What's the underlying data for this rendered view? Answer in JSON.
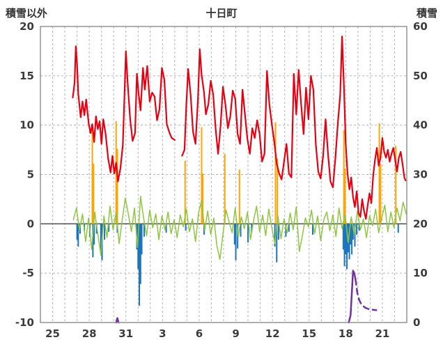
{
  "chart_data": {
    "type": "line",
    "title": "十日町",
    "left_axis": {
      "label": "積雪以外",
      "min": -10,
      "max": 20,
      "ticks": [
        20,
        15,
        10,
        5,
        0,
        -5,
        -10
      ]
    },
    "right_axis": {
      "label": "積雪",
      "min": 0,
      "max": 60,
      "ticks": [
        60,
        50,
        40,
        30,
        20,
        10,
        0
      ]
    },
    "x_axis": {
      "min": 0,
      "max": 30,
      "gridline_interval": 1,
      "tick_positions": [
        1,
        4,
        7,
        10,
        13,
        16,
        19,
        22,
        25,
        28
      ],
      "tick_labels": [
        "25",
        "28",
        "31",
        "3",
        "6",
        "9",
        "12",
        "15",
        "18",
        "21"
      ]
    },
    "colors": {
      "temperature": "#e60012",
      "green_series": "#8dc63f",
      "blue_bars": "#1c75bc",
      "orange_bars": "#ffa400",
      "snow_depth": "#7030a0",
      "grid": "#b3b3b3",
      "border": "#8c8c8c",
      "zero_line": "#595959"
    },
    "series": [
      {
        "name": "snowfall-bars",
        "axis": "left",
        "type": "bar",
        "color": "#ffa400",
        "width": 2,
        "points": [
          [
            4.25,
            9.9
          ],
          [
            4.35,
            6.1
          ],
          [
            6.2,
            10.4
          ],
          [
            6.3,
            7.6
          ],
          [
            11.85,
            6.4
          ],
          [
            13.2,
            9.8
          ],
          [
            13.3,
            5.1
          ],
          [
            15.1,
            7.1
          ],
          [
            16.3,
            5.5
          ],
          [
            19.25,
            10.3
          ],
          [
            19.4,
            6.6
          ],
          [
            24.85,
            9.5
          ],
          [
            24.95,
            5.6
          ],
          [
            27.75,
            10.2
          ],
          [
            27.85,
            6.1
          ],
          [
            29.1,
            7.9
          ]
        ]
      },
      {
        "name": "precipitation-bars",
        "axis": "left",
        "type": "bar",
        "color": "#1c75bc",
        "width": 2,
        "points": [
          [
            3.0,
            -1.6
          ],
          [
            3.1,
            -2.3
          ],
          [
            3.25,
            -1.0
          ],
          [
            3.6,
            -0.7
          ],
          [
            4.05,
            -1.3
          ],
          [
            4.3,
            -3.4
          ],
          [
            4.4,
            -2.1
          ],
          [
            4.6,
            -1.0
          ],
          [
            4.95,
            -2.9
          ],
          [
            5.05,
            -3.7
          ],
          [
            5.25,
            -1.6
          ],
          [
            5.6,
            -0.8
          ],
          [
            6.3,
            -0.9
          ],
          [
            7.9,
            -2.6
          ],
          [
            8.0,
            -4.6
          ],
          [
            8.1,
            -8.3
          ],
          [
            8.2,
            -6.1
          ],
          [
            8.3,
            -3.1
          ],
          [
            8.5,
            -1.3
          ],
          [
            10.3,
            -0.9
          ],
          [
            11.9,
            -0.7
          ],
          [
            13.4,
            -1.1
          ],
          [
            15.9,
            -2.1
          ],
          [
            16.0,
            -3.7
          ],
          [
            16.15,
            -2.5
          ],
          [
            16.4,
            -1.3
          ],
          [
            17.0,
            -1.9
          ],
          [
            17.3,
            -0.9
          ],
          [
            19.2,
            -2.3
          ],
          [
            19.35,
            -3.9
          ],
          [
            19.5,
            -1.6
          ],
          [
            20.1,
            -1.3
          ],
          [
            20.35,
            -0.8
          ],
          [
            22.3,
            -1.1
          ],
          [
            24.8,
            -2.6
          ],
          [
            24.9,
            -4.3
          ],
          [
            25.0,
            -3.1
          ],
          [
            25.1,
            -4.6
          ],
          [
            25.2,
            -2.9
          ],
          [
            25.3,
            -3.6
          ],
          [
            25.4,
            -2.1
          ],
          [
            25.5,
            -3.1
          ],
          [
            25.6,
            -1.6
          ],
          [
            25.75,
            -2.3
          ],
          [
            25.9,
            -1.1
          ],
          [
            26.1,
            -0.7
          ],
          [
            29.3,
            -0.9
          ]
        ]
      },
      {
        "name": "green-series",
        "axis": "left",
        "type": "line",
        "color": "#8dc63f",
        "width": 1.5,
        "sampled": {
          "start": 2.7,
          "step": 0.25,
          "values": [
            0.4,
            1.6,
            -0.6,
            1.0,
            -1.8,
            0.6,
            -2.6,
            1.2,
            -1.0,
            -3.2,
            0.8,
            -1.4,
            1.8,
            -0.6,
            1.2,
            -2.0,
            0.4,
            2.6,
            1.0,
            -0.8,
            1.6,
            -2.4,
            2.8,
            0.6,
            -1.2,
            1.4,
            -0.4,
            1.0,
            -1.6,
            0.8,
            -0.6,
            1.2,
            -1.0,
            0.4,
            -1.4,
            0.9,
            -0.3,
            1.5,
            -0.8,
            0.5,
            -1.8,
            1.1,
            2.4,
            -0.7,
            1.3,
            -1.1,
            0.6,
            -2.2,
            -3.6,
            -1.0,
            1.4,
            0.2,
            -0.9,
            1.6,
            -1.3,
            0.7,
            -0.5,
            1.2,
            -1.6,
            0.3,
            1.8,
            -0.8,
            0.9,
            -1.2,
            1.5,
            -0.4,
            -2.0,
            0.8,
            -1.5,
            0.5,
            -0.9,
            1.1,
            -0.6,
            1.7,
            -2.8,
            -1.2,
            0.6,
            -0.3,
            1.4,
            -1.0,
            0.8,
            -1.7,
            0.4,
            1.2,
            -0.7,
            0.9,
            -1.3,
            1.6,
            -0.5,
            1.0,
            -1.9,
            0.7,
            -1.1,
            1.3,
            -0.6,
            0.5,
            -1.4,
            0.8,
            -0.2,
            1.5,
            -0.9,
            0.6,
            1.9,
            -0.8,
            1.2,
            -0.4,
            1.6,
            0.3,
            2.2,
            1.0
          ]
        }
      },
      {
        "name": "temperature",
        "axis": "left",
        "type": "line",
        "color": "#e60012",
        "width": 2.2,
        "segments": [
          [
            [
              2.65,
              12.8
            ],
            [
              2.8,
              14.3
            ],
            [
              2.9,
              18.0
            ],
            [
              3.0,
              16.2
            ],
            [
              3.1,
              13.2
            ],
            [
              3.3,
              10.8
            ],
            [
              3.45,
              12.4
            ],
            [
              3.6,
              11.0
            ],
            [
              3.75,
              12.6
            ],
            [
              3.95,
              10.2
            ],
            [
              4.1,
              9.2
            ],
            [
              4.25,
              10.1
            ],
            [
              4.4,
              8.3
            ],
            [
              4.55,
              10.9
            ],
            [
              4.7,
              9.6
            ],
            [
              4.85,
              10.4
            ],
            [
              5.0,
              8.1
            ],
            [
              5.15,
              10.6
            ],
            [
              5.35,
              9.0
            ],
            [
              5.55,
              6.6
            ],
            [
              5.75,
              5.2
            ],
            [
              5.9,
              6.9
            ],
            [
              6.05,
              5.1
            ],
            [
              6.2,
              6.2
            ],
            [
              6.35,
              4.3
            ],
            [
              6.55,
              5.6
            ],
            [
              6.75,
              8.0
            ],
            [
              6.9,
              13.6
            ],
            [
              7.0,
              17.5
            ],
            [
              7.15,
              14.2
            ],
            [
              7.35,
              10.6
            ],
            [
              7.55,
              8.4
            ],
            [
              7.75,
              9.2
            ],
            [
              7.9,
              15.2
            ],
            [
              8.05,
              13.1
            ],
            [
              8.2,
              11.5
            ],
            [
              8.4,
              15.8
            ],
            [
              8.55,
              13.6
            ],
            [
              8.75,
              16.0
            ],
            [
              8.95,
              12.4
            ],
            [
              9.15,
              13.3
            ],
            [
              9.35,
              12.9
            ],
            [
              9.55,
              10.5
            ],
            [
              9.75,
              11.6
            ],
            [
              9.95,
              15.8
            ],
            [
              10.15,
              14.6
            ],
            [
              10.35,
              10.1
            ],
            [
              10.55,
              9.3
            ],
            [
              10.75,
              8.7
            ],
            [
              11.0,
              8.5
            ]
          ],
          [
            [
              11.6,
              6.9
            ],
            [
              11.8,
              7.5
            ],
            [
              11.95,
              12.1
            ],
            [
              12.1,
              15.7
            ],
            [
              12.3,
              13.1
            ],
            [
              12.5,
              9.3
            ],
            [
              12.7,
              8.1
            ],
            [
              12.9,
              12.6
            ],
            [
              13.05,
              17.7
            ],
            [
              13.2,
              15.1
            ],
            [
              13.4,
              13.3
            ],
            [
              13.55,
              11.1
            ],
            [
              13.75,
              12.1
            ],
            [
              13.95,
              14.5
            ],
            [
              14.15,
              13.1
            ],
            [
              14.35,
              9.6
            ],
            [
              14.55,
              7.1
            ],
            [
              14.75,
              9.9
            ],
            [
              14.95,
              13.9
            ],
            [
              15.15,
              12.1
            ],
            [
              15.35,
              9.7
            ],
            [
              15.55,
              10.9
            ],
            [
              15.75,
              13.5
            ],
            [
              15.95,
              12.7
            ],
            [
              16.15,
              9.1
            ],
            [
              16.35,
              8.1
            ],
            [
              16.55,
              13.6
            ],
            [
              16.75,
              11.1
            ],
            [
              16.95,
              8.6
            ],
            [
              17.15,
              7.1
            ],
            [
              17.35,
              9.7
            ],
            [
              17.55,
              8.7
            ],
            [
              17.75,
              10.5
            ],
            [
              17.95,
              9.1
            ],
            [
              18.15,
              6.3
            ],
            [
              18.35,
              7.1
            ],
            [
              18.55,
              15.5
            ],
            [
              18.75,
              12.1
            ],
            [
              18.95,
              10.1
            ],
            [
              19.15,
              8.3
            ],
            [
              19.35,
              6.1
            ],
            [
              19.55,
              5.1
            ],
            [
              19.75,
              4.5
            ],
            [
              19.95,
              6.3
            ],
            [
              20.15,
              8.1
            ],
            [
              20.35,
              5.1
            ],
            [
              20.55,
              4.7
            ],
            [
              20.75,
              15.2
            ],
            [
              20.95,
              11.1
            ],
            [
              21.15,
              15.6
            ],
            [
              21.35,
              12.1
            ],
            [
              21.55,
              9.1
            ],
            [
              21.75,
              13.8
            ],
            [
              21.95,
              10.6
            ],
            [
              22.15,
              15.0
            ],
            [
              22.35,
              13.6
            ],
            [
              22.55,
              8.1
            ],
            [
              22.75,
              5.3
            ],
            [
              22.95,
              4.6
            ],
            [
              23.15,
              6.9
            ],
            [
              23.35,
              10.6
            ],
            [
              23.55,
              7.1
            ],
            [
              23.75,
              4.3
            ],
            [
              23.95,
              3.7
            ],
            [
              24.15,
              6.6
            ],
            [
              24.35,
              10.1
            ],
            [
              24.55,
              13.1
            ],
            [
              24.7,
              19.0
            ],
            [
              24.85,
              14.1
            ],
            [
              25.0,
              8.1
            ],
            [
              25.15,
              5.1
            ],
            [
              25.3,
              3.5
            ],
            [
              25.45,
              4.7
            ],
            [
              25.6,
              2.7
            ],
            [
              25.75,
              1.7
            ],
            [
              25.9,
              3.3
            ],
            [
              26.05,
              1.1
            ],
            [
              26.2,
              0.7
            ],
            [
              26.35,
              2.5
            ],
            [
              26.5,
              1.3
            ],
            [
              26.65,
              0.5
            ],
            [
              26.8,
              1.9
            ],
            [
              26.95,
              3.1
            ],
            [
              27.1,
              2.1
            ],
            [
              27.25,
              4.9
            ],
            [
              27.4,
              6.5
            ],
            [
              27.55,
              7.7
            ],
            [
              27.7,
              5.9
            ],
            [
              27.85,
              6.7
            ],
            [
              28.0,
              8.7
            ],
            [
              28.15,
              7.3
            ],
            [
              28.3,
              6.7
            ],
            [
              28.45,
              7.5
            ],
            [
              28.6,
              6.3
            ],
            [
              28.75,
              7.1
            ],
            [
              28.9,
              7.7
            ],
            [
              29.05,
              6.5
            ],
            [
              29.2,
              5.3
            ],
            [
              29.35,
              6.7
            ],
            [
              29.5,
              7.3
            ],
            [
              29.65,
              6.1
            ],
            [
              29.8,
              4.7
            ],
            [
              29.9,
              4.4
            ]
          ]
        ]
      },
      {
        "name": "snow-depth-solid",
        "axis": "right",
        "type": "line",
        "color": "#7030a0",
        "width": 2.5,
        "segments": [
          [
            [
              6.2,
              0
            ],
            [
              6.3,
              0.9
            ],
            [
              6.4,
              0
            ]
          ],
          [
            [
              25.25,
              0
            ],
            [
              25.4,
              1.5
            ],
            [
              25.5,
              6.0
            ],
            [
              25.6,
              10.5
            ],
            [
              25.7,
              10.0
            ],
            [
              25.8,
              8.8
            ]
          ]
        ]
      },
      {
        "name": "snow-depth-forecast-dashed",
        "axis": "right",
        "type": "line",
        "color": "#7030a0",
        "width": 2.5,
        "dash": "8 6",
        "segments": [
          [
            [
              25.8,
              8.8
            ],
            [
              25.95,
              6.0
            ],
            [
              26.1,
              4.6
            ],
            [
              26.3,
              3.6
            ],
            [
              26.6,
              3.0
            ],
            [
              26.9,
              2.7
            ],
            [
              27.2,
              2.6
            ],
            [
              27.5,
              2.5
            ]
          ]
        ]
      }
    ]
  }
}
